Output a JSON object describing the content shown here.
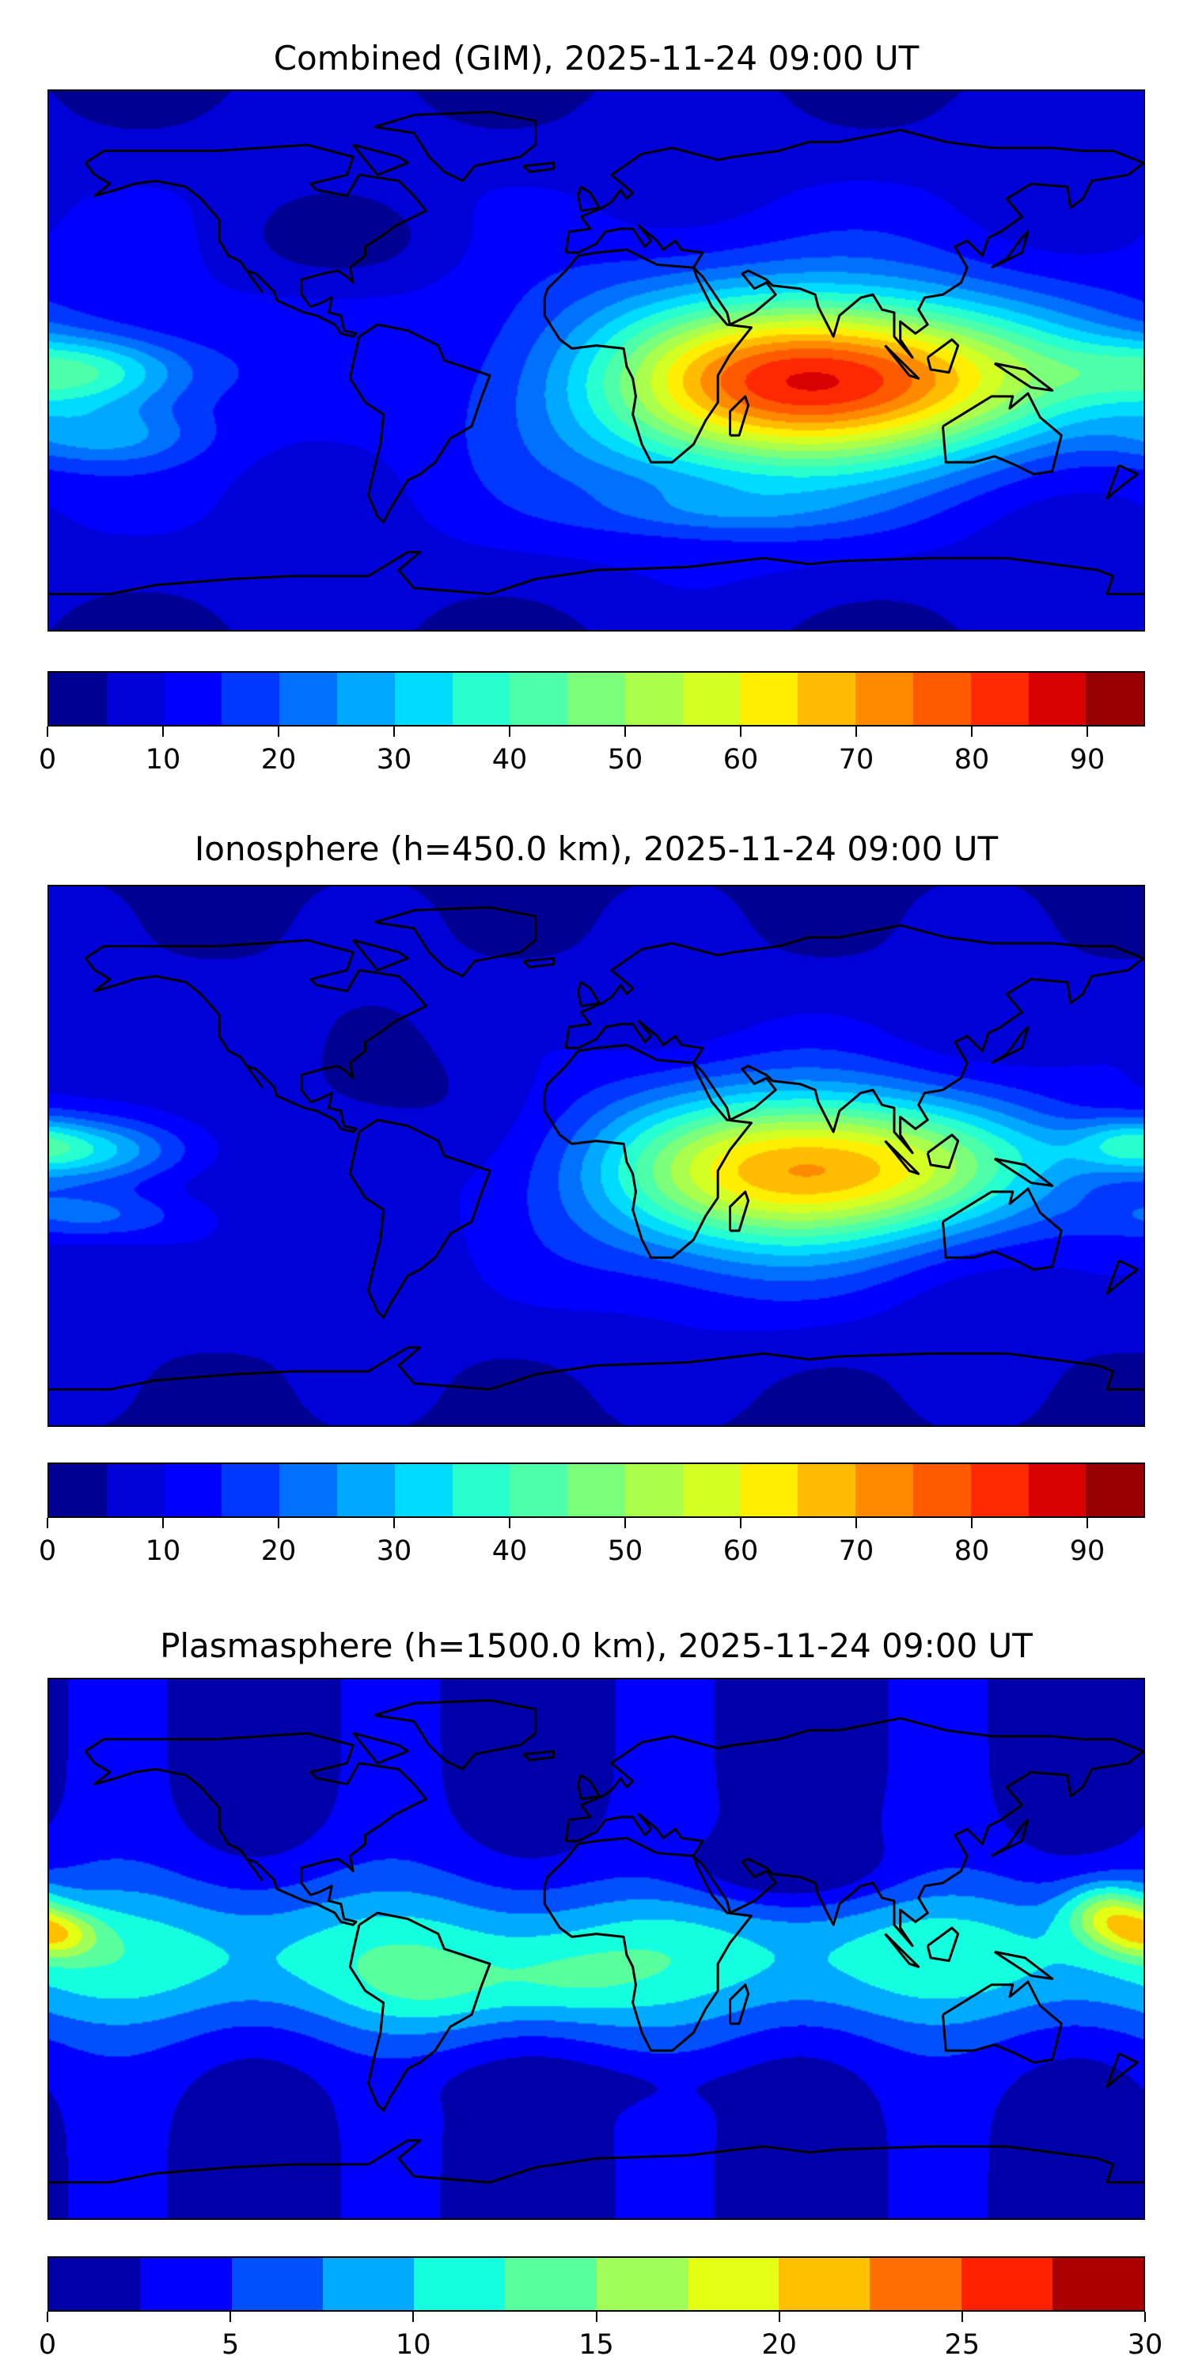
{
  "panels": [
    {
      "id": "combined",
      "title": "Combined (GIM), 2025-11-24 09:00 UT",
      "colorbar": {
        "min": 0,
        "max": 95,
        "step": 5,
        "ticks": [
          "0",
          "10",
          "20",
          "30",
          "40",
          "50",
          "60",
          "70",
          "80",
          "90"
        ],
        "tick_values": [
          0,
          10,
          20,
          30,
          40,
          50,
          60,
          70,
          80,
          90
        ],
        "colors": [
          "#000092",
          "#0000d8",
          "#0000ff",
          "#0038ff",
          "#0070ff",
          "#00a8ff",
          "#00dcff",
          "#26ffd0",
          "#4cffa8",
          "#7cff7a",
          "#aaff4c",
          "#d4ff22",
          "#ffee00",
          "#ffbc00",
          "#ff8a00",
          "#ff5a00",
          "#ff2800",
          "#d80000",
          "#960000"
        ]
      }
    },
    {
      "id": "ionosphere",
      "title": "Ionosphere  (h=450.0 km), 2025-11-24 09:00 UT",
      "colorbar": {
        "min": 0,
        "max": 95,
        "step": 5,
        "ticks": [
          "0",
          "10",
          "20",
          "30",
          "40",
          "50",
          "60",
          "70",
          "80",
          "90"
        ],
        "tick_values": [
          0,
          10,
          20,
          30,
          40,
          50,
          60,
          70,
          80,
          90
        ],
        "colors": [
          "#000092",
          "#0000d8",
          "#0000ff",
          "#0038ff",
          "#0070ff",
          "#00a8ff",
          "#00dcff",
          "#26ffd0",
          "#4cffa8",
          "#7cff7a",
          "#aaff4c",
          "#d4ff22",
          "#ffee00",
          "#ffbc00",
          "#ff8a00",
          "#ff5a00",
          "#ff2800",
          "#d80000",
          "#960000"
        ]
      }
    },
    {
      "id": "plasmasphere",
      "title": "Plasmasphere (h=1500.0 km), 2025-11-24 09:00 UT",
      "colorbar": {
        "min": 0,
        "max": 30,
        "step": 2.5,
        "ticks": [
          "0",
          "5",
          "10",
          "15",
          "20",
          "25",
          "30"
        ],
        "tick_values": [
          0,
          5,
          10,
          15,
          20,
          25,
          30
        ],
        "colors": [
          "#0000aa",
          "#0000ff",
          "#0050ff",
          "#00aaff",
          "#14ffe0",
          "#58ff9c",
          "#a0ff56",
          "#e2ff14",
          "#ffc000",
          "#ff6e00",
          "#ff2000",
          "#aa0000"
        ]
      }
    }
  ]
}
